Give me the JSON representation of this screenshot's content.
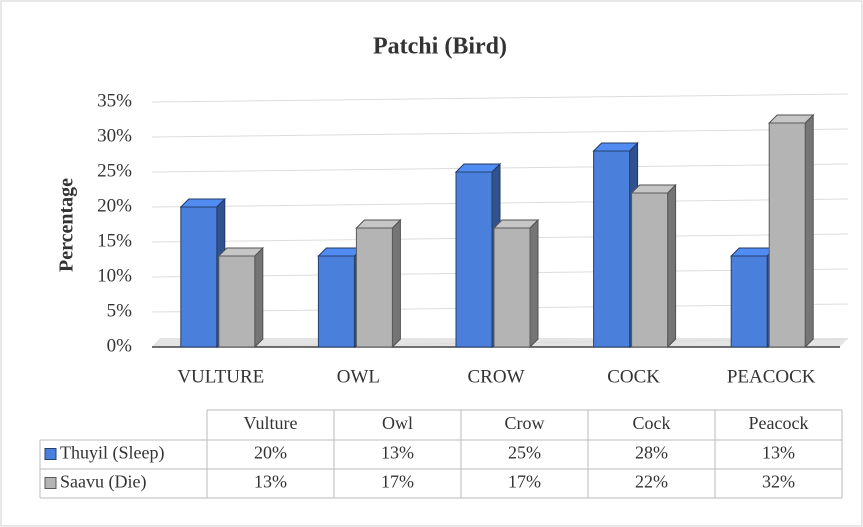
{
  "chart_data": {
    "type": "bar3d",
    "title": "Patchi (Bird)",
    "y_label": "Percentage",
    "categories": [
      "VULTURE",
      "OWL",
      "CROW",
      "COCK",
      "PEACOCK"
    ],
    "ylim": [
      0,
      35
    ],
    "yticks": [
      {
        "value": 0,
        "label": "0%"
      },
      {
        "value": 5,
        "label": "5%"
      },
      {
        "value": 10,
        "label": "10%"
      },
      {
        "value": 15,
        "label": "15%"
      },
      {
        "value": 20,
        "label": "20%"
      },
      {
        "value": 25,
        "label": "25%"
      },
      {
        "value": 30,
        "label": "30%"
      },
      {
        "value": 35,
        "label": "35%"
      }
    ],
    "grid": true,
    "series": [
      {
        "name": "Thuyil (Sleep)",
        "color": "#4a7fdc",
        "values": [
          20,
          13,
          25,
          28,
          13
        ],
        "value_labels": [
          "20%",
          "13%",
          "25%",
          "28%",
          "13%"
        ]
      },
      {
        "name": "Saavu (Die)",
        "color": "#b4b4b4",
        "values": [
          13,
          17,
          17,
          22,
          32
        ],
        "value_labels": [
          "13%",
          "17%",
          "17%",
          "22%",
          "32%"
        ]
      }
    ],
    "data_table": {
      "columns": [
        "Vulture",
        "Owl",
        "Crow",
        "Cock",
        "Peacock"
      ]
    }
  }
}
